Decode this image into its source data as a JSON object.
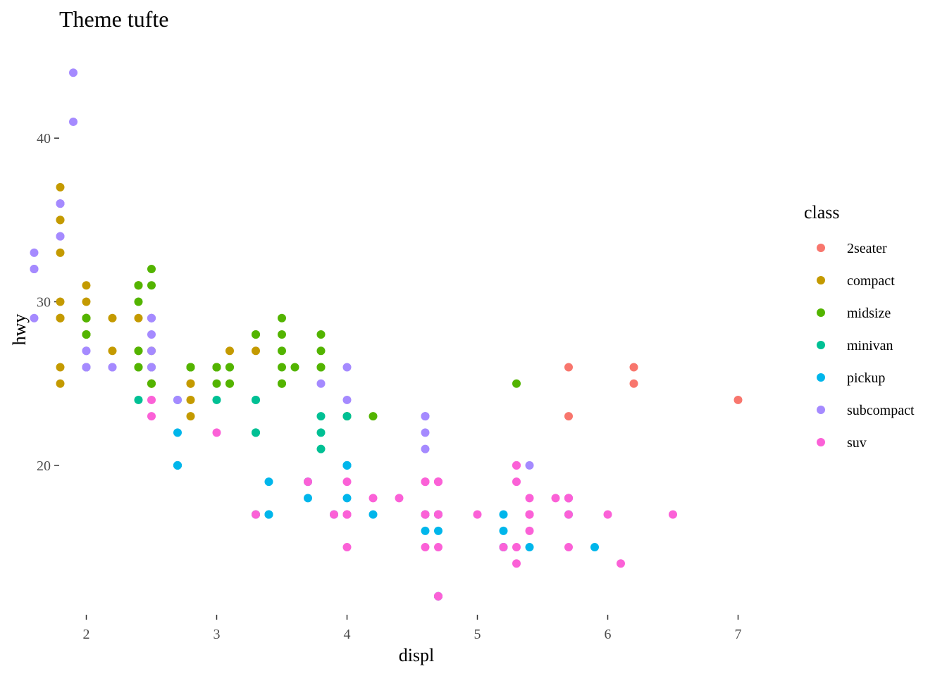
{
  "chart_data": {
    "type": "scatter",
    "title": "Theme tufte",
    "xlabel": "displ",
    "ylabel": "hwy",
    "xlim": [
      1.5,
      7.1
    ],
    "ylim": [
      11.0,
      45.0
    ],
    "x_ticks": [
      2,
      3,
      4,
      5,
      6,
      7
    ],
    "y_ticks": [
      20,
      30,
      40
    ],
    "grid": false,
    "legend": {
      "title": "class",
      "position": "right"
    },
    "series": [
      {
        "name": "2seater",
        "color": "#F8766D",
        "points": [
          [
            5.7,
            26
          ],
          [
            5.7,
            23
          ],
          [
            6.2,
            26
          ],
          [
            6.2,
            25
          ],
          [
            7.0,
            24
          ]
        ]
      },
      {
        "name": "compact",
        "color": "#C49A00",
        "points": [
          [
            1.8,
            29
          ],
          [
            1.8,
            29
          ],
          [
            2.0,
            31
          ],
          [
            2.0,
            30
          ],
          [
            2.8,
            26
          ],
          [
            2.8,
            26
          ],
          [
            3.1,
            27
          ],
          [
            1.8,
            26
          ],
          [
            1.8,
            25
          ],
          [
            2.0,
            28
          ],
          [
            2.0,
            29
          ],
          [
            2.8,
            25
          ],
          [
            2.8,
            25
          ],
          [
            3.1,
            25
          ],
          [
            2.2,
            29
          ],
          [
            2.2,
            27
          ],
          [
            2.4,
            31
          ],
          [
            2.4,
            31
          ],
          [
            3.0,
            26
          ],
          [
            3.0,
            26
          ],
          [
            3.3,
            27
          ],
          [
            1.8,
            33
          ],
          [
            1.8,
            35
          ],
          [
            1.8,
            37
          ],
          [
            1.8,
            35
          ],
          [
            1.8,
            29
          ],
          [
            2.0,
            29
          ],
          [
            2.0,
            29
          ],
          [
            2.5,
            27
          ],
          [
            2.5,
            25
          ],
          [
            2.4,
            27
          ],
          [
            2.4,
            29
          ],
          [
            2.5,
            25
          ],
          [
            2.8,
            24
          ],
          [
            2.8,
            23
          ],
          [
            1.8,
            30
          ]
        ]
      },
      {
        "name": "midsize",
        "color": "#53B400",
        "points": [
          [
            2.4,
            27
          ],
          [
            2.4,
            30
          ],
          [
            3.1,
            26
          ],
          [
            3.5,
            29
          ],
          [
            3.6,
            26
          ],
          [
            2.4,
            26
          ],
          [
            3.0,
            26
          ],
          [
            3.3,
            28
          ],
          [
            3.3,
            28
          ],
          [
            3.8,
            28
          ],
          [
            3.8,
            27
          ],
          [
            3.8,
            26
          ],
          [
            5.3,
            25
          ],
          [
            2.4,
            26
          ],
          [
            2.4,
            31
          ],
          [
            2.5,
            32
          ],
          [
            2.5,
            31
          ],
          [
            3.5,
            27
          ],
          [
            3.5,
            26
          ],
          [
            2.0,
            29
          ],
          [
            2.0,
            28
          ],
          [
            2.8,
            26
          ],
          [
            2.8,
            26
          ],
          [
            3.0,
            25
          ],
          [
            3.1,
            25
          ],
          [
            4.2,
            23
          ],
          [
            2.0,
            29
          ],
          [
            2.0,
            26
          ],
          [
            2.0,
            28
          ],
          [
            2.8,
            26
          ],
          [
            3.5,
            28
          ],
          [
            3.5,
            25
          ],
          [
            3.1,
            26
          ],
          [
            3.8,
            26
          ],
          [
            4.0,
            23
          ],
          [
            2.5,
            25
          ],
          [
            2.5,
            26
          ],
          [
            3.0,
            26
          ],
          [
            3.5,
            25
          ],
          [
            3.0,
            26
          ]
        ]
      },
      {
        "name": "minivan",
        "color": "#00C094",
        "points": [
          [
            2.4,
            24
          ],
          [
            3.0,
            24
          ],
          [
            3.3,
            22
          ],
          [
            3.3,
            22
          ],
          [
            3.3,
            24
          ],
          [
            3.3,
            24
          ],
          [
            3.3,
            17
          ],
          [
            3.8,
            22
          ],
          [
            3.8,
            21
          ],
          [
            3.8,
            23
          ],
          [
            4.0,
            23
          ]
        ]
      },
      {
        "name": "pickup",
        "color": "#00B6EB",
        "points": [
          [
            2.7,
            20
          ],
          [
            2.7,
            20
          ],
          [
            2.7,
            22
          ],
          [
            3.4,
            17
          ],
          [
            3.4,
            19
          ],
          [
            4.0,
            18
          ],
          [
            4.0,
            20
          ],
          [
            4.2,
            17
          ],
          [
            4.6,
            17
          ],
          [
            4.6,
            16
          ],
          [
            4.7,
            17
          ],
          [
            4.7,
            16
          ],
          [
            4.7,
            17
          ],
          [
            5.2,
            16
          ],
          [
            5.2,
            15
          ],
          [
            5.7,
            17
          ],
          [
            5.9,
            15
          ],
          [
            3.7,
            18
          ],
          [
            3.7,
            19
          ],
          [
            3.9,
            17
          ],
          [
            4.7,
            12
          ],
          [
            4.7,
            17
          ],
          [
            5.2,
            17
          ],
          [
            5.2,
            15
          ],
          [
            5.7,
            18
          ],
          [
            3.4,
            17
          ],
          [
            4.0,
            20
          ],
          [
            5.4,
            15
          ],
          [
            2.7,
            20
          ],
          [
            2.7,
            24
          ],
          [
            4.0,
            20
          ],
          [
            4.6,
            17
          ],
          [
            4.7,
            12
          ]
        ]
      },
      {
        "name": "subcompact",
        "color": "#A58AFF",
        "points": [
          [
            1.8,
            36
          ],
          [
            1.8,
            34
          ],
          [
            1.8,
            36
          ],
          [
            1.9,
            44
          ],
          [
            1.9,
            41
          ],
          [
            2.0,
            26
          ],
          [
            2.0,
            27
          ],
          [
            2.0,
            26
          ],
          [
            2.5,
            29
          ],
          [
            2.5,
            28
          ],
          [
            2.5,
            26
          ],
          [
            2.5,
            29
          ],
          [
            2.5,
            27
          ],
          [
            1.6,
            33
          ],
          [
            1.6,
            32
          ],
          [
            1.6,
            32
          ],
          [
            1.6,
            29
          ],
          [
            1.6,
            32
          ],
          [
            1.8,
            34
          ],
          [
            1.8,
            36
          ],
          [
            3.8,
            25
          ],
          [
            4.0,
            24
          ],
          [
            4.0,
            26
          ],
          [
            4.6,
            23
          ],
          [
            4.6,
            22
          ],
          [
            4.6,
            21
          ],
          [
            4.6,
            23
          ],
          [
            5.4,
            20
          ],
          [
            2.2,
            26
          ],
          [
            2.2,
            26
          ],
          [
            2.5,
            26
          ],
          [
            2.5,
            29
          ],
          [
            2.7,
            24
          ],
          [
            2.0,
            27
          ],
          [
            2.0,
            26
          ]
        ]
      },
      {
        "name": "suv",
        "color": "#FB61D7",
        "points": [
          [
            5.3,
            20
          ],
          [
            5.3,
            15
          ],
          [
            5.3,
            20
          ],
          [
            5.7,
            17
          ],
          [
            6.0,
            17
          ],
          [
            5.3,
            19
          ],
          [
            5.3,
            14
          ],
          [
            5.7,
            15
          ],
          [
            6.5,
            17
          ],
          [
            3.9,
            17
          ],
          [
            4.7,
            12
          ],
          [
            4.7,
            17
          ],
          [
            4.7,
            19
          ],
          [
            5.2,
            15
          ],
          [
            5.7,
            18
          ],
          [
            4.6,
            17
          ],
          [
            5.4,
            17
          ],
          [
            5.4,
            18
          ],
          [
            3.7,
            19
          ],
          [
            4.7,
            19
          ],
          [
            4.7,
            17
          ],
          [
            4.7,
            17
          ],
          [
            5.7,
            18
          ],
          [
            6.1,
            14
          ],
          [
            4.0,
            17
          ],
          [
            4.2,
            18
          ],
          [
            4.4,
            18
          ],
          [
            4.6,
            19
          ],
          [
            5.4,
            17
          ],
          [
            5.4,
            16
          ],
          [
            4.0,
            19
          ],
          [
            4.0,
            15
          ],
          [
            4.0,
            17
          ],
          [
            4.0,
            17
          ],
          [
            4.6,
            15
          ],
          [
            5.0,
            17
          ],
          [
            5.6,
            18
          ],
          [
            3.3,
            17
          ],
          [
            3.0,
            22
          ],
          [
            4.7,
            15
          ],
          [
            5.7,
            18
          ],
          [
            4.6,
            17
          ],
          [
            5.4,
            17
          ],
          [
            2.5,
            24
          ],
          [
            2.5,
            23
          ],
          [
            4.6,
            19
          ],
          [
            4.7,
            12
          ],
          [
            4.7,
            19
          ]
        ]
      }
    ]
  }
}
